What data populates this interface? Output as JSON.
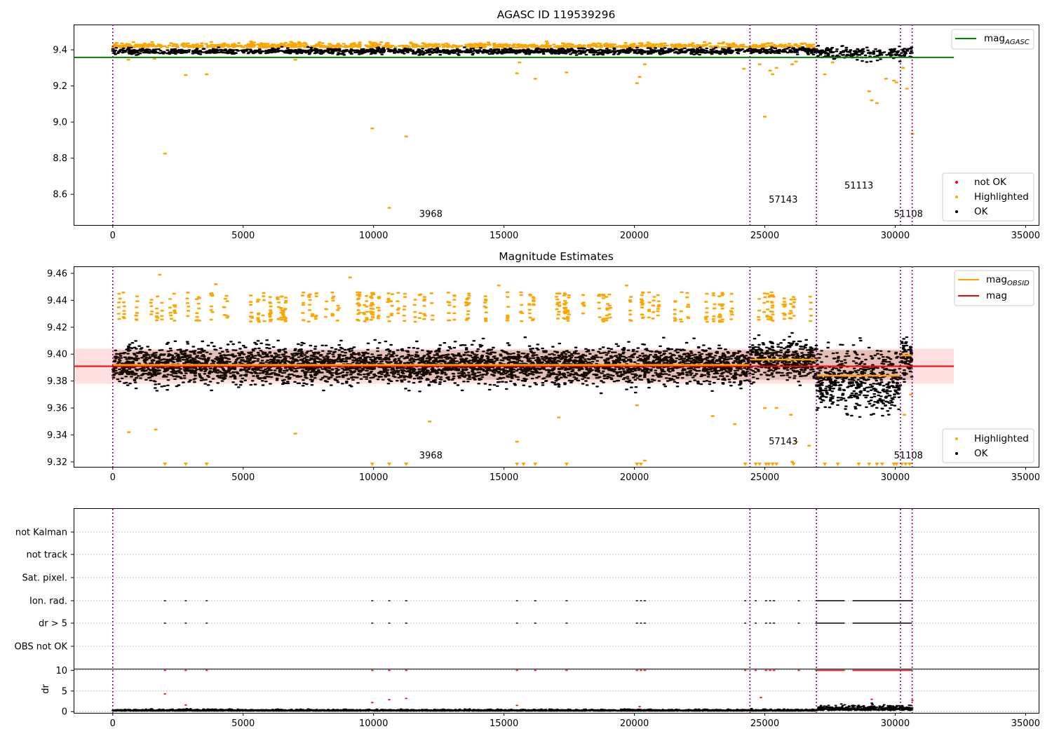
{
  "figure": {
    "vlines_x": [
      0,
      24430,
      26980,
      30200,
      30650
    ]
  },
  "chart_data": [
    {
      "type": "scatter",
      "title": "AGASC ID 119539296",
      "xlim": [
        -1500,
        35500
      ],
      "ylim": [
        8.43,
        9.54
      ],
      "xticks": [
        0,
        5000,
        10000,
        15000,
        20000,
        25000,
        30000,
        35000
      ],
      "yticks": [
        8.6,
        8.8,
        9.0,
        9.2,
        9.4
      ],
      "ytick_labels": [
        "8.6",
        "8.8",
        "9.0",
        "9.2",
        "9.4"
      ],
      "grid": false,
      "legend_upper": {
        "placement": "top-right",
        "entries": [
          {
            "label": "mag",
            "sub": "AGASC",
            "color": "#008000",
            "kind": "line"
          }
        ]
      },
      "legend_lower": {
        "placement": "bottom-right",
        "entries": [
          {
            "label": "not OK",
            "color": "#ff0000",
            "kind": "dot"
          },
          {
            "label": "Highlighted",
            "color": "#ffa500",
            "kind": "dot"
          },
          {
            "label": "OK",
            "color": "#000000",
            "kind": "dot"
          }
        ]
      },
      "annotations": [
        {
          "text": "3968",
          "x": 11750,
          "y": 8.475
        },
        {
          "text": "57143",
          "x": 25150,
          "y": 8.555
        },
        {
          "text": "51113",
          "x": 28050,
          "y": 8.632
        },
        {
          "text": "51108",
          "x": 29950,
          "y": 8.475
        }
      ],
      "hlines": [
        {
          "y": 9.358,
          "x0": -1500,
          "x1": 32250,
          "color": "#008000"
        }
      ],
      "series": [
        {
          "name": "OK",
          "color": "#000000",
          "bands": [
            {
              "x0": 0,
              "x1": 24430,
              "mean": 9.392,
              "spread": 0.022
            },
            {
              "x0": 24430,
              "x1": 26980,
              "mean": 9.395,
              "spread": 0.026
            },
            {
              "x0": 26980,
              "x1": 30200,
              "mean": 9.382,
              "spread": 0.05
            },
            {
              "x0": 30200,
              "x1": 30650,
              "mean": 9.39,
              "spread": 0.04
            }
          ]
        },
        {
          "name": "Highlighted",
          "color": "#ffa500",
          "outliers": [
            [
              2000,
              8.825
            ],
            [
              2800,
              9.26
            ],
            [
              3600,
              9.265
            ],
            [
              600,
              9.345
            ],
            [
              1600,
              9.35
            ],
            [
              7000,
              9.345
            ],
            [
              9950,
              8.965
            ],
            [
              10600,
              8.525
            ],
            [
              11250,
              8.92
            ],
            [
              15500,
              9.27
            ],
            [
              16200,
              9.24
            ],
            [
              17400,
              9.275
            ],
            [
              20100,
              9.215
            ],
            [
              20200,
              9.25
            ],
            [
              20400,
              9.32
            ],
            [
              24200,
              9.295
            ],
            [
              24800,
              9.32
            ],
            [
              25000,
              9.03
            ],
            [
              25200,
              9.285
            ],
            [
              25300,
              9.265
            ],
            [
              25450,
              9.3
            ],
            [
              26050,
              9.32
            ],
            [
              26200,
              9.335
            ],
            [
              27300,
              9.265
            ],
            [
              29000,
              9.17
            ],
            [
              29100,
              9.12
            ],
            [
              29300,
              9.105
            ],
            [
              29650,
              9.24
            ],
            [
              29950,
              9.23
            ],
            [
              30050,
              9.22
            ],
            [
              30300,
              9.3
            ],
            [
              30450,
              9.185
            ],
            [
              30660,
              8.935
            ],
            [
              15600,
              9.33
            ],
            [
              27600,
              9.33
            ]
          ]
        }
      ]
    },
    {
      "type": "scatter",
      "title": "Magnitude Estimates",
      "xlim": [
        -1500,
        35500
      ],
      "ylim": [
        9.3163,
        9.4652
      ],
      "xticks": [
        0,
        5000,
        10000,
        15000,
        20000,
        25000,
        30000,
        35000
      ],
      "yticks": [
        9.32,
        9.34,
        9.36,
        9.38,
        9.4,
        9.42,
        9.44,
        9.46
      ],
      "ytick_labels": [
        "9.32",
        "9.34",
        "9.36",
        "9.38",
        "9.40",
        "9.42",
        "9.44",
        "9.46"
      ],
      "grid": false,
      "legend_upper": {
        "placement": "top-right",
        "entries": [
          {
            "label": "mag",
            "sub": "OBSID",
            "color": "#ffa500",
            "kind": "line"
          },
          {
            "label": "mag",
            "sub": "",
            "color": "#ff0000",
            "kind": "line"
          }
        ]
      },
      "legend_lower": {
        "placement": "bottom-right",
        "entries": [
          {
            "label": "Highlighted",
            "color": "#ffa500",
            "kind": "dot"
          },
          {
            "label": "OK",
            "color": "#000000",
            "kind": "dot"
          }
        ]
      },
      "annotations": [
        {
          "text": "3968",
          "x": 11750,
          "y": 9.3225
        },
        {
          "text": "57143",
          "x": 25150,
          "y": 9.333
        },
        {
          "text": "51108",
          "x": 29950,
          "y": 9.3225
        }
      ],
      "mag": {
        "value": 9.391,
        "band": [
          9.378,
          9.404
        ],
        "x0": -1500,
        "x1": 32250
      },
      "mag_obsid": [
        {
          "x0": 0,
          "x1": 24430,
          "y": 9.392
        },
        {
          "x0": 24430,
          "x1": 26980,
          "y": 9.396
        },
        {
          "x0": 26980,
          "x1": 30200,
          "y": 9.384
        },
        {
          "x0": 30200,
          "x1": 30650,
          "y": 9.399
        }
      ],
      "series": [
        {
          "name": "OK",
          "color": "#000000",
          "bands": [
            {
              "x0": 0,
              "x1": 24430,
              "mean": 9.392,
              "spread": 0.012
            },
            {
              "x0": 24430,
              "x1": 26980,
              "mean": 9.396,
              "spread": 0.013
            },
            {
              "x0": 26980,
              "x1": 30200,
              "mean": 9.38,
              "spread": 0.02
            },
            {
              "x0": 30200,
              "x1": 30650,
              "mean": 9.397,
              "spread": 0.015
            }
          ]
        },
        {
          "name": "Highlighted",
          "color": "#ffa500",
          "outliers": [
            [
              1800,
              9.459
            ],
            [
              9100,
              9.457
            ],
            [
              3950,
              9.452
            ],
            [
              14800,
              9.451
            ],
            [
              19700,
              9.451
            ],
            [
              2200,
              9.441
            ],
            [
              620,
              9.342
            ],
            [
              1650,
              9.344
            ],
            [
              7000,
              9.341
            ],
            [
              12150,
              9.35
            ],
            [
              15500,
              9.335
            ],
            [
              17100,
              9.353
            ],
            [
              20100,
              9.362
            ],
            [
              20400,
              9.321
            ],
            [
              23000,
              9.354
            ],
            [
              23850,
              9.348
            ],
            [
              25000,
              9.36
            ],
            [
              25450,
              9.36
            ],
            [
              26000,
              9.355
            ],
            [
              26050,
              9.32
            ],
            [
              26200,
              9.335
            ],
            [
              26700,
              9.332
            ],
            [
              30350,
              9.355
            ],
            [
              30600,
              9.37
            ]
          ],
          "clipped_x": [
            2000,
            2800,
            3600,
            9950,
            10600,
            11250,
            15500,
            15750,
            16200,
            17400,
            20100,
            20250,
            24250,
            24650,
            24800,
            25050,
            25150,
            25300,
            25450,
            26100,
            27300,
            27800,
            28600,
            29000,
            29300,
            29500,
            29950,
            30050,
            30250,
            30400,
            30550
          ]
        }
      ]
    },
    {
      "type": "scatter",
      "title": "",
      "xlim": [
        -1500,
        35500
      ],
      "xticks": [
        0,
        5000,
        10000,
        15000,
        20000,
        25000,
        30000,
        35000
      ],
      "flag_labels": [
        "not Kalman",
        "not track",
        "Sat. pixel.",
        "Ion. rad.",
        "dr > 5",
        "OBS not OK"
      ],
      "flag_events_x": [
        2000,
        2800,
        3600,
        9950,
        10600,
        11250,
        15500,
        16200,
        17400,
        20100,
        20250,
        20400,
        24250,
        24650,
        25050,
        25200,
        25350,
        26300
      ],
      "flag_dense_ranges": [
        [
          26980,
          28050
        ],
        [
          28400,
          30650
        ]
      ],
      "dr": {
        "ylabel": "dr",
        "ylim": [
          -0.3,
          10.4
        ],
        "yticks": [
          0,
          5,
          10
        ],
        "ytick_labels": [
          "0",
          "5",
          "10"
        ],
        "clip_value": 10,
        "outliers": [
          [
            2000,
            4.3
          ],
          [
            2800,
            1.6
          ],
          [
            9950,
            2.2
          ],
          [
            10600,
            2.9
          ],
          [
            11250,
            3.2
          ],
          [
            15500,
            1.5
          ],
          [
            20200,
            1.2
          ],
          [
            24850,
            3.4
          ],
          [
            29100,
            3.0
          ],
          [
            30660,
            2.7
          ]
        ]
      }
    }
  ]
}
